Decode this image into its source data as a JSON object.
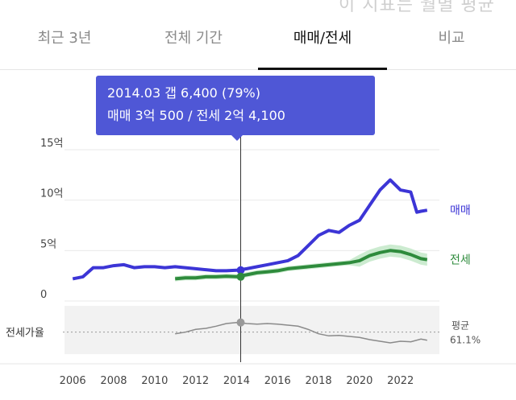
{
  "header_text": "이 지표는 월별 평균",
  "tabs": [
    {
      "label": "최근 3년",
      "active": false
    },
    {
      "label": "전체 기간",
      "active": false
    },
    {
      "label": "매매/전세",
      "active": true
    },
    {
      "label": "비교",
      "active": false
    }
  ],
  "tooltip": {
    "line1": "2014.03  갭 6,400 (79%)",
    "line2": "매매 3억 500 / 전세 2억 4,100"
  },
  "colors": {
    "sale": "#3c35d6",
    "jeonse": "#2e8b3c",
    "jeonse_band": "#bfe6c4",
    "ratio": "#8a8a8a",
    "grid": "#e9e9e9",
    "ratio_bg": "#f2f2f2",
    "axis_text": "#444444"
  },
  "chart_data": {
    "type": "line",
    "x_ticks": [
      "2006",
      "2008",
      "2010",
      "2012",
      "2014",
      "2016",
      "2018",
      "2020",
      "2022"
    ],
    "y_ticks": [
      "15억",
      "10억",
      "5억",
      "0"
    ],
    "ylim": [
      0,
      15
    ],
    "xlim": [
      2005.6,
      2023.9
    ],
    "grid": true,
    "series": [
      {
        "name": "매매",
        "values": [
          [
            2006.0,
            2.2
          ],
          [
            2006.5,
            2.4
          ],
          [
            2007.0,
            3.3
          ],
          [
            2007.5,
            3.3
          ],
          [
            2008.0,
            3.5
          ],
          [
            2008.5,
            3.6
          ],
          [
            2009.0,
            3.3
          ],
          [
            2009.5,
            3.4
          ],
          [
            2010.0,
            3.4
          ],
          [
            2010.5,
            3.3
          ],
          [
            2011.0,
            3.4
          ],
          [
            2011.5,
            3.3
          ],
          [
            2012.0,
            3.2
          ],
          [
            2012.5,
            3.1
          ],
          [
            2013.0,
            3.0
          ],
          [
            2013.5,
            3.0
          ],
          [
            2014.0,
            3.05
          ],
          [
            2014.5,
            3.2
          ],
          [
            2015.0,
            3.4
          ],
          [
            2015.5,
            3.6
          ],
          [
            2016.0,
            3.8
          ],
          [
            2016.5,
            4.0
          ],
          [
            2017.0,
            4.5
          ],
          [
            2017.5,
            5.5
          ],
          [
            2018.0,
            6.5
          ],
          [
            2018.5,
            7.0
          ],
          [
            2019.0,
            6.8
          ],
          [
            2019.5,
            7.5
          ],
          [
            2020.0,
            8.0
          ],
          [
            2020.5,
            9.5
          ],
          [
            2021.0,
            11.0
          ],
          [
            2021.5,
            12.0
          ],
          [
            2022.0,
            11.0
          ],
          [
            2022.5,
            10.8
          ],
          [
            2022.8,
            8.8
          ],
          [
            2023.0,
            8.9
          ],
          [
            2023.3,
            9.0
          ]
        ]
      },
      {
        "name": "전세",
        "values": [
          [
            2011.0,
            2.2
          ],
          [
            2011.5,
            2.3
          ],
          [
            2012.0,
            2.3
          ],
          [
            2012.5,
            2.4
          ],
          [
            2013.0,
            2.4
          ],
          [
            2013.5,
            2.45
          ],
          [
            2014.0,
            2.41
          ],
          [
            2014.5,
            2.6
          ],
          [
            2015.0,
            2.8
          ],
          [
            2015.5,
            2.9
          ],
          [
            2016.0,
            3.0
          ],
          [
            2016.5,
            3.2
          ],
          [
            2017.0,
            3.3
          ],
          [
            2017.5,
            3.4
          ],
          [
            2018.0,
            3.5
          ],
          [
            2018.5,
            3.6
          ],
          [
            2019.0,
            3.7
          ],
          [
            2019.5,
            3.8
          ],
          [
            2020.0,
            4.0
          ],
          [
            2020.5,
            4.5
          ],
          [
            2021.0,
            4.8
          ],
          [
            2021.5,
            5.0
          ],
          [
            2022.0,
            4.9
          ],
          [
            2022.5,
            4.6
          ],
          [
            2023.0,
            4.2
          ],
          [
            2023.3,
            4.1
          ]
        ]
      }
    ],
    "ratio_series": {
      "name": "전세가율",
      "label_left": "전세가율",
      "avg_label": "평균",
      "avg_value": "61.1%",
      "avg": 61.1,
      "values": [
        [
          2011.0,
          58
        ],
        [
          2011.5,
          61
        ],
        [
          2012.0,
          66
        ],
        [
          2012.5,
          68
        ],
        [
          2013.0,
          72
        ],
        [
          2013.5,
          77
        ],
        [
          2014.0,
          79
        ],
        [
          2014.5,
          77
        ],
        [
          2015.0,
          76
        ],
        [
          2015.5,
          77
        ],
        [
          2016.0,
          76
        ],
        [
          2016.5,
          74
        ],
        [
          2017.0,
          72
        ],
        [
          2017.5,
          66
        ],
        [
          2018.0,
          58
        ],
        [
          2018.5,
          54
        ],
        [
          2019.0,
          55
        ],
        [
          2019.5,
          53
        ],
        [
          2020.0,
          51
        ],
        [
          2020.5,
          47
        ],
        [
          2021.0,
          44
        ],
        [
          2021.5,
          41
        ],
        [
          2022.0,
          44
        ],
        [
          2022.5,
          43
        ],
        [
          2023.0,
          48
        ],
        [
          2023.3,
          46
        ]
      ]
    },
    "highlight": {
      "x": 2014.2,
      "sale": 3.05,
      "jeonse": 2.41,
      "ratio": 79
    }
  }
}
